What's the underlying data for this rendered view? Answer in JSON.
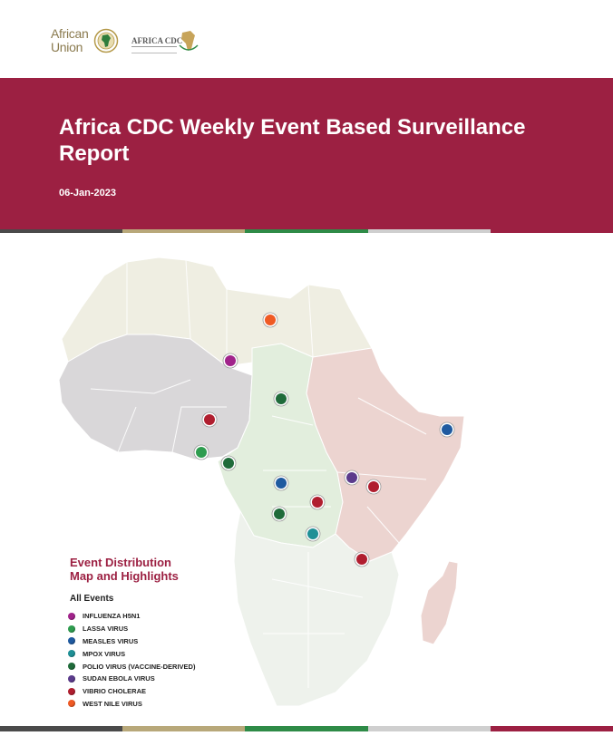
{
  "logos": {
    "au_line1": "African",
    "au_line2": "Union",
    "cdc_text": "AFRICA CDC"
  },
  "report": {
    "title": "Africa CDC Weekly Event Based Surveillance Report",
    "date": "06-Jan-2023"
  },
  "colors": {
    "banner": "#9c2042",
    "stripes": [
      "#4a4a4a",
      "#b8a87a",
      "#2e8b47",
      "#cfcfcf",
      "#9c2042"
    ],
    "region_north": "#efeee2",
    "region_west": "#d9d7d9",
    "region_central": "#e2eedd",
    "region_east": "#ecd4d0",
    "region_south": "#eef2ec"
  },
  "map": {
    "markers": [
      {
        "event": "West Nile Virus",
        "color": "#ef5a24"
      },
      {
        "event": "Influenza H5N1",
        "color": "#a1238b"
      },
      {
        "event": "Polio Virus (Vaccine-Derived)",
        "color": "#1f6b3a"
      },
      {
        "event": "Vibrio Cholerae",
        "color": "#b01e2f"
      },
      {
        "event": "Lassa Virus",
        "color": "#2e9c4f"
      },
      {
        "event": "Polio Virus (Vaccine-Derived)",
        "color": "#1f6b3a"
      },
      {
        "event": "Measles Virus",
        "color": "#1f5aa0"
      },
      {
        "event": "Vibrio Cholerae",
        "color": "#b01e2f"
      },
      {
        "event": "Polio Virus (Vaccine-Derived)",
        "color": "#1f6b3a"
      },
      {
        "event": "Mpox Virus",
        "color": "#1f9096"
      },
      {
        "event": "Sudan Ebola Virus",
        "color": "#5b3b8c"
      },
      {
        "event": "Vibrio Cholerae",
        "color": "#b01e2f"
      },
      {
        "event": "Measles Virus",
        "color": "#1f5aa0"
      },
      {
        "event": "Vibrio Cholerae",
        "color": "#b01e2f"
      }
    ]
  },
  "highlights": {
    "title_line1": "Event Distribution",
    "title_line2": "Map and Highlights",
    "legend_title": "All Events",
    "legend": [
      {
        "label": "INFLUENZA H5N1",
        "color": "#a1238b"
      },
      {
        "label": "LASSA VIRUS",
        "color": "#2e9c4f"
      },
      {
        "label": "MEASLES VIRUS",
        "color": "#1f5aa0"
      },
      {
        "label": "MPOX VIRUS",
        "color": "#1f9096"
      },
      {
        "label": "POLIO VIRUS (VACCINE-DERIVED)",
        "color": "#1f6b3a"
      },
      {
        "label": "SUDAN EBOLA VIRUS",
        "color": "#5b3b8c"
      },
      {
        "label": "VIBRIO CHOLERAE",
        "color": "#b01e2f"
      },
      {
        "label": "WEST NILE VIRUS",
        "color": "#ef5a24"
      }
    ]
  }
}
